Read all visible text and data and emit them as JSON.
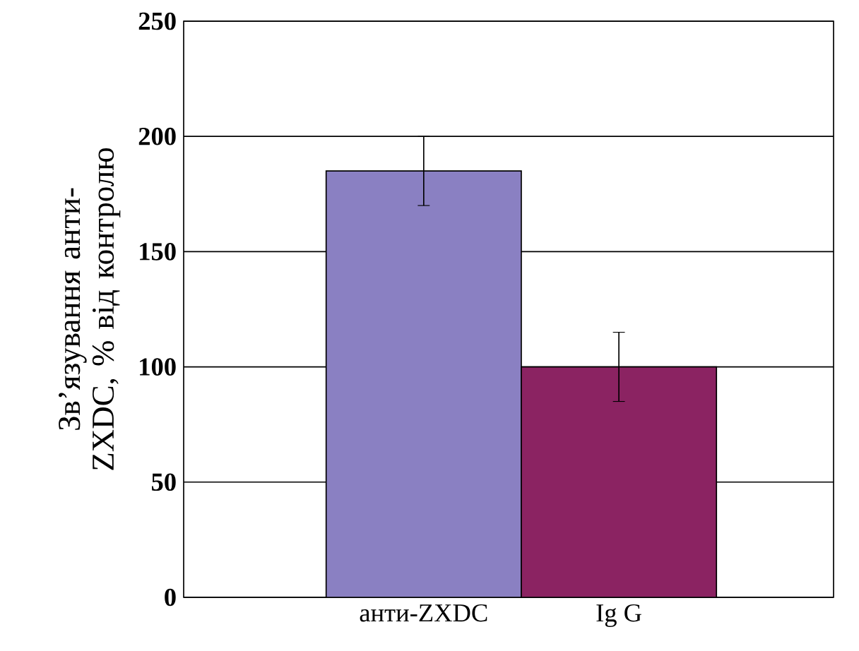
{
  "chart_data": {
    "type": "bar",
    "ylabel": "Зв’язування анти-ZXDC, % від контролю",
    "categories": [
      "анти-ZXDC",
      "Ig G"
    ],
    "values": [
      185,
      100
    ],
    "colors": [
      "#8a80c2",
      "#8b2362"
    ],
    "errors": [
      15,
      15
    ],
    "ylim": [
      0,
      250
    ],
    "yticks": [
      0,
      50,
      100,
      150,
      200,
      250
    ],
    "grid": "y"
  }
}
